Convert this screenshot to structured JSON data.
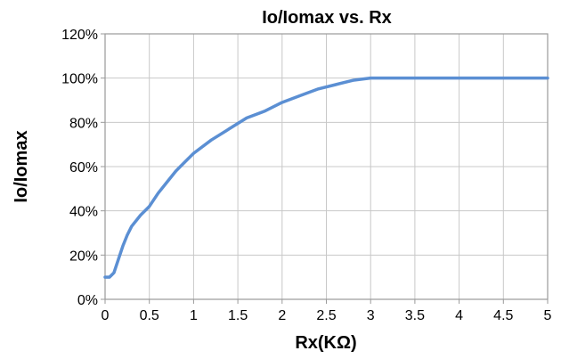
{
  "chart_data": {
    "type": "line",
    "title": "Io/Iomax vs. Rx",
    "xlabel": "Rx(KΩ)",
    "ylabel": "Io/Iomax",
    "xlim": [
      0,
      5
    ],
    "ylim": [
      0,
      120
    ],
    "x_ticks": [
      0,
      0.5,
      1,
      1.5,
      2,
      2.5,
      3,
      3.5,
      4,
      4.5,
      5
    ],
    "x_tick_labels": [
      "0",
      "0.5",
      "1",
      "1.5",
      "2",
      "2.5",
      "3",
      "3.5",
      "4",
      "4.5",
      "5"
    ],
    "y_ticks": [
      0,
      20,
      40,
      60,
      80,
      100,
      120
    ],
    "y_tick_labels": [
      "0%",
      "20%",
      "40%",
      "60%",
      "80%",
      "100%",
      "120%"
    ],
    "grid": true,
    "legend": "none",
    "series_color": "#5B8FD3",
    "series": [
      {
        "x": [
          0,
          0.05,
          0.1,
          0.15,
          0.2,
          0.25,
          0.3,
          0.4,
          0.5,
          0.6,
          0.7,
          0.8,
          0.9,
          1.0,
          1.2,
          1.4,
          1.6,
          1.8,
          2.0,
          2.2,
          2.4,
          2.6,
          2.8,
          3.0,
          3.1,
          3.2,
          3.3,
          3.5,
          4.0,
          4.5,
          5.0
        ],
        "y": [
          10,
          10,
          12,
          18,
          24,
          29,
          33,
          38,
          42,
          48,
          53,
          58,
          62,
          66,
          72,
          77,
          82,
          85,
          89,
          92,
          95,
          97,
          99,
          100,
          100,
          100,
          100,
          100,
          100,
          100,
          100
        ]
      }
    ]
  }
}
